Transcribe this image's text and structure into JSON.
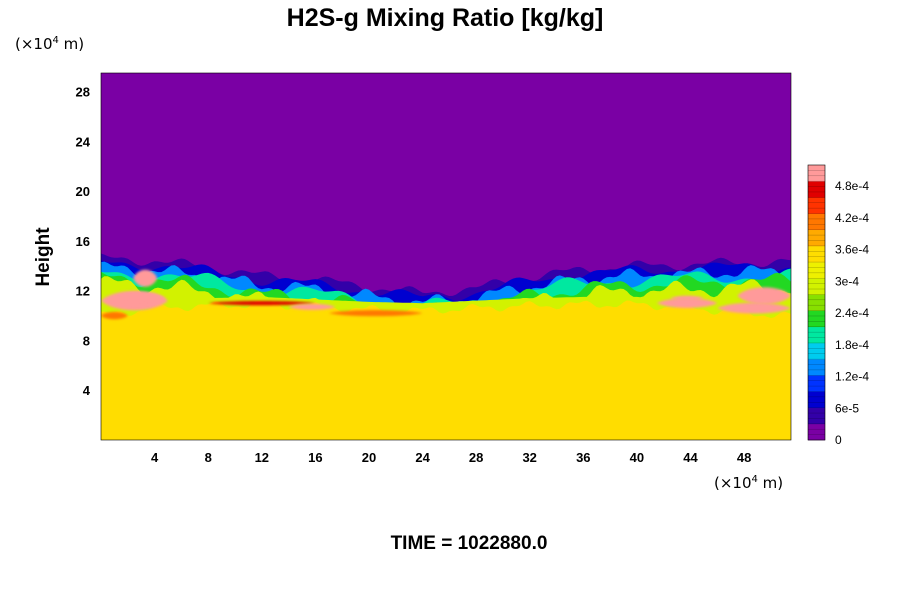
{
  "chart_data": {
    "type": "heatmap",
    "title": "H2S-g Mixing Ratio [kg/kg]",
    "ylabel": "Height",
    "xlabel": "",
    "x_unit": {
      "prefix": "(×10",
      "exp": "4",
      "suffix": " m)"
    },
    "y_unit": {
      "prefix": "(×10",
      "exp": "4",
      "suffix": " m)"
    },
    "xlim": [
      0,
      51.5
    ],
    "ylim": [
      0,
      29.5
    ],
    "x_ticks": [
      4,
      8,
      12,
      16,
      20,
      24,
      28,
      32,
      36,
      40,
      44,
      48
    ],
    "x_tick_labels": [
      "4",
      "8",
      "12",
      "16",
      "20",
      "24",
      "28",
      "32",
      "36",
      "40",
      "44",
      "48"
    ],
    "y_ticks": [
      4,
      8,
      12,
      16,
      20,
      24,
      28
    ],
    "y_tick_labels": [
      "4",
      "8",
      "12",
      "16",
      "20",
      "24",
      "28"
    ],
    "colorbar": {
      "range": [
        0,
        0.00052
      ],
      "labels": [
        "4.8e-4",
        "4.2e-4",
        "3.6e-4",
        "3e-4",
        "2.4e-4",
        "1.8e-4",
        "1.2e-4",
        "6e-5",
        "0"
      ],
      "label_values": [
        0.00048,
        0.00042,
        0.00036,
        0.0003,
        0.00024,
        0.00018,
        0.00012,
        6e-05,
        0
      ],
      "colors": [
        "#7a00a4",
        "#3300a8",
        "#0000d0",
        "#0033ff",
        "#0088ff",
        "#00ccee",
        "#00e8a0",
        "#22d822",
        "#88e000",
        "#d2f200",
        "#eef000",
        "#ffdd00",
        "#ffaa00",
        "#ff7700",
        "#ff3300",
        "#e00000",
        "#ff9a9a"
      ]
    },
    "field_description": {
      "lower_layer_value": 0.00034,
      "upper_layer_value": 0,
      "transition_height_x": [
        0,
        4,
        8,
        12,
        16,
        20,
        24,
        28,
        32,
        36,
        40,
        44,
        48,
        51.5
      ],
      "transition_height_y": [
        14.6,
        14.4,
        13.9,
        13.2,
        12.9,
        12.3,
        11.8,
        12.2,
        13.1,
        13.7,
        14.0,
        14.1,
        14.3,
        14.3
      ],
      "lower_layer_top_y": [
        10.0,
        10.6,
        10.8,
        10.9,
        10.7,
        10.5,
        10.4,
        10.6,
        10.8,
        10.9,
        10.9,
        10.6,
        10.2,
        10.0
      ]
    },
    "time_label": "TIME = 1022880.0"
  }
}
